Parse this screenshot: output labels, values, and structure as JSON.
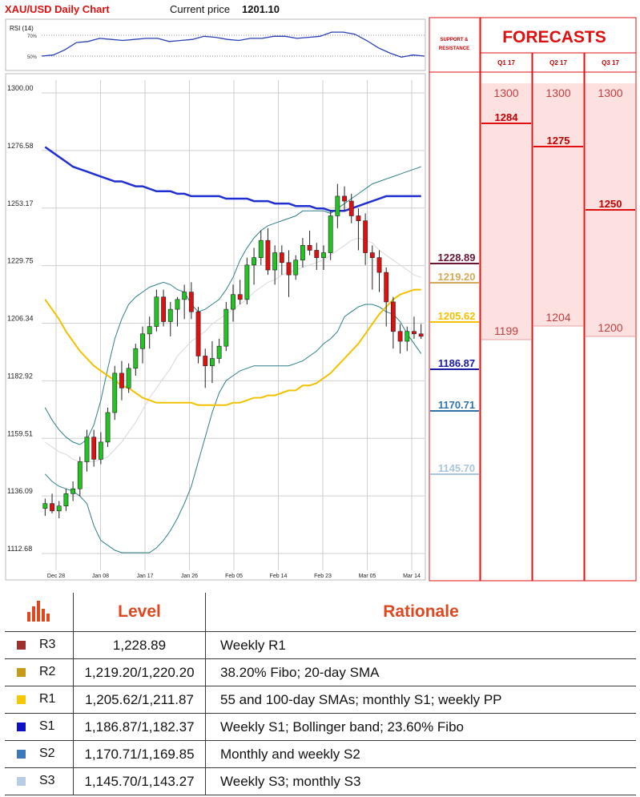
{
  "header": {
    "title": "XAU/USD Daily Chart",
    "price_label": "Current price",
    "price_value": "1201.10"
  },
  "forecasts": {
    "title": "FORECASTS",
    "sr_label_1": "SUPPORT &",
    "sr_label_2": "RESISTANCE",
    "columns": [
      {
        "quarter": "Q1 17",
        "top": "1300",
        "mid": "1284",
        "low": "1199"
      },
      {
        "quarter": "Q2 17",
        "top": "1300",
        "mid": "1275",
        "low": "1204"
      },
      {
        "quarter": "Q3 17",
        "top": "1300",
        "mid": "1250",
        "low": "1200"
      }
    ],
    "colors": {
      "title": "#e01010",
      "band": "#fde0e0",
      "line": "#e01010",
      "mid_text": "#c00000",
      "muted_text": "#c04040"
    }
  },
  "sr_levels": [
    {
      "label": "1228.89",
      "color": "#6b1538"
    },
    {
      "label": "1219.20",
      "color": "#d6a95a"
    },
    {
      "label": "1205.62",
      "color": "#f2c200"
    },
    {
      "label": "1186.87",
      "color": "#1a1aa0"
    },
    {
      "label": "1170.71",
      "color": "#2f73a8"
    },
    {
      "label": "1145.70",
      "color": "#a8c6d8"
    }
  ],
  "table": {
    "header_level": "Level",
    "header_rationale": "Rationale",
    "rows": [
      {
        "name": "R3",
        "level": "1,228.89",
        "rationale": "Weekly R1",
        "color": "#9e3030"
      },
      {
        "name": "R2",
        "level": "1,219.20/1,220.20",
        "rationale": "38.20% Fibo; 20-day SMA",
        "color": "#c69a1a"
      },
      {
        "name": "R1",
        "level": "1,205.62/1,211.87",
        "rationale": "55 and 100-day SMAs; monthly S1; weekly PP",
        "color": "#f5c800"
      },
      {
        "name": "S1",
        "level": "1,186.87/1,182.37",
        "rationale": "Weekly S1; Bollinger band; 23.60% Fibo",
        "color": "#1010c8"
      },
      {
        "name": "S2",
        "level": "1,170.71/1,169.85",
        "rationale": "Monthly and weekly S2",
        "color": "#3d78b8"
      },
      {
        "name": "S3",
        "level": "1,145.70/1,143.27",
        "rationale": "Weekly S3; monthly S3",
        "color": "#b8cde6"
      }
    ]
  },
  "chart_data": [
    {
      "type": "line",
      "title": "RSI (14)",
      "y_tick_labels": [
        "70%",
        "50%"
      ],
      "ylim": [
        30,
        75
      ],
      "series": [
        {
          "values": [
            50,
            51,
            56,
            63,
            64,
            67,
            66,
            65,
            66,
            67,
            67,
            64,
            65,
            66,
            69,
            68,
            66,
            65,
            67,
            67,
            69,
            69,
            67,
            68,
            69,
            73,
            73,
            71,
            65,
            58,
            53,
            49,
            51,
            50
          ]
        }
      ],
      "colors": {
        "line": "#2a3fb3"
      },
      "grid": false
    },
    {
      "type": "candlestick",
      "title": "",
      "ylim": [
        1112.68,
        1300.0
      ],
      "y_tick_labels": [
        "1300.00",
        "1276.58",
        "1253.17",
        "1229.75",
        "1206.34",
        "1182.92",
        "1159.51",
        "1136.09",
        "1112.68"
      ],
      "x_tick_labels": [
        "Dec 28",
        "Jan 08",
        "Jan 17",
        "Jan 26",
        "Feb 05",
        "Feb 14",
        "Feb 23",
        "Mar 05",
        "Mar 14"
      ],
      "grid": true,
      "candles": [
        {
          "o": 1131,
          "h": 1135,
          "l": 1128,
          "c": 1133
        },
        {
          "o": 1133,
          "h": 1137,
          "l": 1129,
          "c": 1130
        },
        {
          "o": 1130,
          "h": 1134,
          "l": 1127,
          "c": 1132
        },
        {
          "o": 1132,
          "h": 1139,
          "l": 1130,
          "c": 1137
        },
        {
          "o": 1137,
          "h": 1142,
          "l": 1134,
          "c": 1139
        },
        {
          "o": 1139,
          "h": 1152,
          "l": 1136,
          "c": 1150
        },
        {
          "o": 1150,
          "h": 1163,
          "l": 1146,
          "c": 1160
        },
        {
          "o": 1160,
          "h": 1163,
          "l": 1148,
          "c": 1151
        },
        {
          "o": 1151,
          "h": 1162,
          "l": 1149,
          "c": 1158
        },
        {
          "o": 1158,
          "h": 1172,
          "l": 1156,
          "c": 1170
        },
        {
          "o": 1170,
          "h": 1189,
          "l": 1167,
          "c": 1186
        },
        {
          "o": 1186,
          "h": 1191,
          "l": 1175,
          "c": 1180
        },
        {
          "o": 1180,
          "h": 1190,
          "l": 1178,
          "c": 1188
        },
        {
          "o": 1188,
          "h": 1198,
          "l": 1185,
          "c": 1196
        },
        {
          "o": 1196,
          "h": 1205,
          "l": 1190,
          "c": 1202
        },
        {
          "o": 1202,
          "h": 1209,
          "l": 1196,
          "c": 1205
        },
        {
          "o": 1205,
          "h": 1220,
          "l": 1203,
          "c": 1217
        },
        {
          "o": 1217,
          "h": 1220,
          "l": 1205,
          "c": 1207
        },
        {
          "o": 1207,
          "h": 1215,
          "l": 1201,
          "c": 1212
        },
        {
          "o": 1212,
          "h": 1217,
          "l": 1205,
          "c": 1216
        },
        {
          "o": 1216,
          "h": 1222,
          "l": 1208,
          "c": 1219
        },
        {
          "o": 1219,
          "h": 1223,
          "l": 1208,
          "c": 1211
        },
        {
          "o": 1211,
          "h": 1213,
          "l": 1190,
          "c": 1193
        },
        {
          "o": 1193,
          "h": 1196,
          "l": 1180,
          "c": 1189
        },
        {
          "o": 1189,
          "h": 1199,
          "l": 1182,
          "c": 1192
        },
        {
          "o": 1192,
          "h": 1200,
          "l": 1190,
          "c": 1197
        },
        {
          "o": 1197,
          "h": 1215,
          "l": 1195,
          "c": 1212
        },
        {
          "o": 1212,
          "h": 1222,
          "l": 1207,
          "c": 1218
        },
        {
          "o": 1218,
          "h": 1224,
          "l": 1214,
          "c": 1216
        },
        {
          "o": 1216,
          "h": 1233,
          "l": 1214,
          "c": 1230
        },
        {
          "o": 1230,
          "h": 1237,
          "l": 1222,
          "c": 1233
        },
        {
          "o": 1233,
          "h": 1244,
          "l": 1230,
          "c": 1240
        },
        {
          "o": 1240,
          "h": 1245,
          "l": 1226,
          "c": 1228
        },
        {
          "o": 1228,
          "h": 1238,
          "l": 1222,
          "c": 1235
        },
        {
          "o": 1235,
          "h": 1238,
          "l": 1226,
          "c": 1231
        },
        {
          "o": 1231,
          "h": 1236,
          "l": 1217,
          "c": 1226
        },
        {
          "o": 1226,
          "h": 1234,
          "l": 1224,
          "c": 1232
        },
        {
          "o": 1232,
          "h": 1241,
          "l": 1229,
          "c": 1238
        },
        {
          "o": 1238,
          "h": 1244,
          "l": 1234,
          "c": 1236
        },
        {
          "o": 1236,
          "h": 1239,
          "l": 1228,
          "c": 1233
        },
        {
          "o": 1233,
          "h": 1238,
          "l": 1228,
          "c": 1235
        },
        {
          "o": 1235,
          "h": 1252,
          "l": 1232,
          "c": 1250
        },
        {
          "o": 1250,
          "h": 1263,
          "l": 1245,
          "c": 1258
        },
        {
          "o": 1258,
          "h": 1262,
          "l": 1252,
          "c": 1256
        },
        {
          "o": 1256,
          "h": 1259,
          "l": 1247,
          "c": 1250
        },
        {
          "o": 1250,
          "h": 1253,
          "l": 1236,
          "c": 1248
        },
        {
          "o": 1248,
          "h": 1251,
          "l": 1230,
          "c": 1235
        },
        {
          "o": 1235,
          "h": 1238,
          "l": 1220,
          "c": 1233
        },
        {
          "o": 1233,
          "h": 1236,
          "l": 1219,
          "c": 1227
        },
        {
          "o": 1227,
          "h": 1229,
          "l": 1205,
          "c": 1215
        },
        {
          "o": 1215,
          "h": 1217,
          "l": 1196,
          "c": 1203
        },
        {
          "o": 1203,
          "h": 1206,
          "l": 1194,
          "c": 1199
        },
        {
          "o": 1199,
          "h": 1205,
          "l": 1195,
          "c": 1203
        },
        {
          "o": 1203,
          "h": 1209,
          "l": 1200,
          "c": 1202
        },
        {
          "o": 1202,
          "h": 1206,
          "l": 1200,
          "c": 1201
        }
      ],
      "overlays": [
        {
          "name_hint": "sma200",
          "color": "#1f2fd0",
          "width": 2.5,
          "values": [
            1278,
            1276,
            1274,
            1272,
            1270,
            1269,
            1268,
            1267,
            1266,
            1265,
            1264,
            1264,
            1263,
            1262,
            1262,
            1261,
            1260,
            1260,
            1260,
            1259,
            1259,
            1258,
            1258,
            1258,
            1258,
            1258,
            1257,
            1257,
            1257,
            1257,
            1256,
            1256,
            1256,
            1255,
            1255,
            1255,
            1254,
            1254,
            1254,
            1253,
            1253,
            1252,
            1252,
            1252,
            1253,
            1254,
            1255,
            1256,
            1257,
            1258,
            1258,
            1258,
            1258,
            1258,
            1258
          ]
        },
        {
          "name_hint": "sma100",
          "color": "#f2c200",
          "width": 2,
          "values": [
            1216,
            1212,
            1208,
            1203,
            1199,
            1195,
            1192,
            1189,
            1187,
            1185,
            1183,
            1181,
            1180,
            1178,
            1176,
            1175,
            1174,
            1174,
            1174,
            1174,
            1174,
            1174,
            1173,
            1173,
            1173,
            1173,
            1173,
            1174,
            1174,
            1175,
            1176,
            1176,
            1177,
            1177,
            1178,
            1179,
            1179,
            1181,
            1181,
            1182,
            1184,
            1186,
            1189,
            1192,
            1195,
            1198,
            1202,
            1206,
            1210,
            1213,
            1216,
            1218,
            1219,
            1220,
            1220
          ]
        },
        {
          "name_hint": "bb_mid",
          "color": "#d8d8d8",
          "width": 1,
          "values": [
            1158,
            1156,
            1154,
            1153,
            1151,
            1150,
            1150,
            1150,
            1151,
            1152,
            1155,
            1158,
            1162,
            1166,
            1171,
            1176,
            1180,
            1184,
            1188,
            1193,
            1196,
            1199,
            1201,
            1203,
            1206,
            1208,
            1210,
            1212,
            1214,
            1216,
            1219,
            1221,
            1223,
            1224,
            1226,
            1227,
            1228,
            1229,
            1230,
            1231,
            1232,
            1234,
            1236,
            1238,
            1240,
            1241,
            1240,
            1239,
            1236,
            1234,
            1232,
            1230,
            1228,
            1226,
            1225
          ]
        },
        {
          "name_hint": "bb_upper",
          "color": "#2e7f86",
          "width": 1,
          "values": [
            1172,
            1167,
            1163,
            1160,
            1158,
            1157,
            1159,
            1165,
            1175,
            1188,
            1200,
            1208,
            1214,
            1217,
            1219,
            1221,
            1222,
            1223,
            1222,
            1220,
            1219,
            1214,
            1211,
            1212,
            1214,
            1216,
            1220,
            1225,
            1232,
            1237,
            1241,
            1244,
            1246,
            1247,
            1248,
            1249,
            1250,
            1252,
            1252,
            1252,
            1252,
            1251,
            1253,
            1255,
            1257,
            1259,
            1261,
            1263,
            1264,
            1265,
            1266,
            1267,
            1268,
            1269,
            1270
          ]
        },
        {
          "name_hint": "bb_lower",
          "color": "#2e7f86",
          "width": 1,
          "values": [
            1145,
            1142,
            1140,
            1139,
            1138,
            1136,
            1133,
            1124,
            1118,
            1116,
            1114,
            1113,
            1113,
            1113,
            1113,
            1113,
            1115,
            1118,
            1122,
            1127,
            1133,
            1140,
            1150,
            1160,
            1170,
            1178,
            1183,
            1185,
            1187,
            1188,
            1189,
            1189,
            1189,
            1189,
            1189,
            1189,
            1190,
            1191,
            1193,
            1195,
            1198,
            1200,
            1203,
            1209,
            1211,
            1213,
            1214,
            1214,
            1213,
            1211,
            1210,
            1207,
            1202,
            1198,
            1194
          ]
        }
      ]
    }
  ]
}
